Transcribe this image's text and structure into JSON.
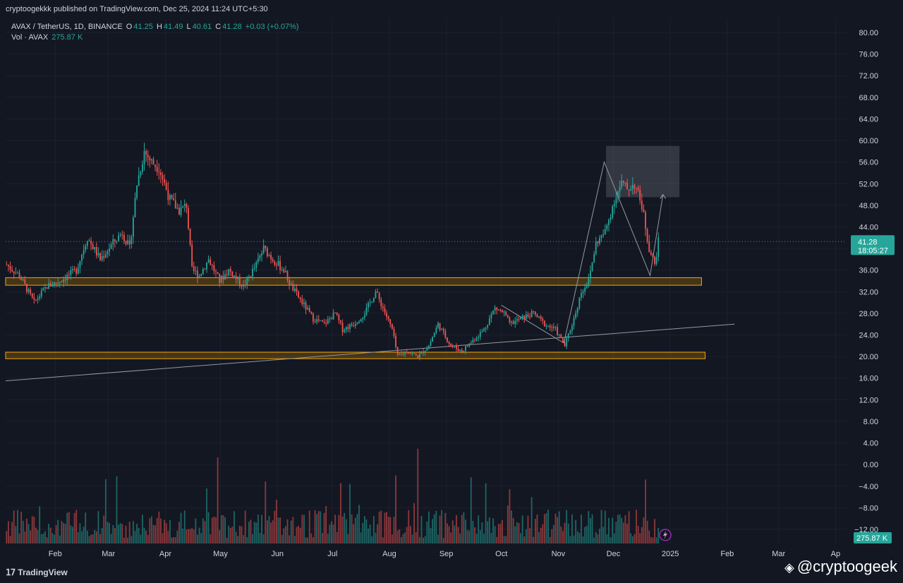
{
  "header": {
    "publisher_line": "cryptoogekkk published on TradingView.com, Dec 25, 2024 11:24 UTC+5:30"
  },
  "legend": {
    "symbol": "AVAX / TetherUS, 1D, BINANCE",
    "o_label": "O",
    "o_value": "41.25",
    "h_label": "H",
    "h_value": "41.49",
    "l_label": "L",
    "l_value": "40.61",
    "c_label": "C",
    "c_value": "41.28",
    "change": "+0.03 (+0.07%)",
    "vol_label": "Vol · AVAX",
    "vol_value": "275.87 K"
  },
  "price_tag": {
    "price": "41.28",
    "countdown": "18:05:27"
  },
  "volume_tag": "275.87 K",
  "footer": {
    "brand": "TradingView",
    "watermark": "@cryptoogeek"
  },
  "colors": {
    "up": "#26a69a",
    "down": "#ef5350",
    "zone": "#f7a600",
    "bg": "#131722"
  },
  "chart_data": {
    "type": "candlestick",
    "symbol": "AVAX / TetherUS",
    "timeframe": "1D",
    "y_ticks": [
      "80.00",
      "76.00",
      "72.00",
      "68.00",
      "64.00",
      "60.00",
      "56.00",
      "52.00",
      "48.00",
      "44.00",
      "40.00",
      "36.00",
      "32.00",
      "28.00",
      "24.00",
      "20.00",
      "16.00",
      "12.00",
      "8.00",
      "4.00",
      "0.00",
      "−4.00",
      "−8.00",
      "−12.00"
    ],
    "ylim": [
      -12,
      80
    ],
    "x_ticks": [
      {
        "label": "Feb",
        "date": "2024-02-01"
      },
      {
        "label": "Mar",
        "date": "2024-03-01"
      },
      {
        "label": "Apr",
        "date": "2024-04-01"
      },
      {
        "label": "May",
        "date": "2024-05-01"
      },
      {
        "label": "Jun",
        "date": "2024-06-01"
      },
      {
        "label": "Jul",
        "date": "2024-07-01"
      },
      {
        "label": "Aug",
        "date": "2024-08-01"
      },
      {
        "label": "Sep",
        "date": "2024-09-01"
      },
      {
        "label": "Oct",
        "date": "2024-10-01"
      },
      {
        "label": "Nov",
        "date": "2024-11-01"
      },
      {
        "label": "Dec",
        "date": "2024-12-01"
      },
      {
        "label": "2025",
        "date": "2025-01-01"
      },
      {
        "label": "Feb",
        "date": "2025-02-01"
      },
      {
        "label": "Mar",
        "date": "2025-03-01"
      },
      {
        "label": "Ap",
        "date": "2025-04-01"
      }
    ],
    "x_range": [
      "2024-01-05",
      "2025-04-07"
    ],
    "price_anchors": [
      [
        "2024-01-05",
        37
      ],
      [
        "2024-01-12",
        35
      ],
      [
        "2024-01-20",
        30
      ],
      [
        "2024-01-27",
        33
      ],
      [
        "2024-02-03",
        34
      ],
      [
        "2024-02-12",
        36
      ],
      [
        "2024-02-18",
        42
      ],
      [
        "2024-02-25",
        38
      ],
      [
        "2024-03-03",
        41
      ],
      [
        "2024-03-08",
        43
      ],
      [
        "2024-03-12",
        40
      ],
      [
        "2024-03-16",
        52
      ],
      [
        "2024-03-20",
        58
      ],
      [
        "2024-03-24",
        56
      ],
      [
        "2024-03-28",
        55
      ],
      [
        "2024-04-03",
        49
      ],
      [
        "2024-04-08",
        47
      ],
      [
        "2024-04-12",
        48
      ],
      [
        "2024-04-15",
        36
      ],
      [
        "2024-04-19",
        35
      ],
      [
        "2024-04-24",
        38
      ],
      [
        "2024-04-30",
        34
      ],
      [
        "2024-05-05",
        36
      ],
      [
        "2024-05-13",
        33
      ],
      [
        "2024-05-20",
        37
      ],
      [
        "2024-05-24",
        40
      ],
      [
        "2024-05-29",
        38
      ],
      [
        "2024-06-04",
        36
      ],
      [
        "2024-06-08",
        33
      ],
      [
        "2024-06-14",
        30
      ],
      [
        "2024-06-20",
        27
      ],
      [
        "2024-06-26",
        26
      ],
      [
        "2024-07-02",
        28
      ],
      [
        "2024-07-06",
        25
      ],
      [
        "2024-07-12",
        26
      ],
      [
        "2024-07-18",
        28
      ],
      [
        "2024-07-24",
        32
      ],
      [
        "2024-07-28",
        29
      ],
      [
        "2024-08-02",
        25
      ],
      [
        "2024-08-05",
        20
      ],
      [
        "2024-08-10",
        21
      ],
      [
        "2024-08-16",
        20
      ],
      [
        "2024-08-22",
        22
      ],
      [
        "2024-08-27",
        26
      ],
      [
        "2024-09-03",
        22
      ],
      [
        "2024-09-09",
        21
      ],
      [
        "2024-09-15",
        23
      ],
      [
        "2024-09-21",
        25
      ],
      [
        "2024-09-27",
        29
      ],
      [
        "2024-10-02",
        28
      ],
      [
        "2024-10-05",
        26
      ],
      [
        "2024-10-11",
        27
      ],
      [
        "2024-10-18",
        28
      ],
      [
        "2024-10-24",
        26
      ],
      [
        "2024-10-30",
        25
      ],
      [
        "2024-11-04",
        22
      ],
      [
        "2024-11-09",
        27
      ],
      [
        "2024-11-13",
        32
      ],
      [
        "2024-11-17",
        34
      ],
      [
        "2024-11-21",
        41
      ],
      [
        "2024-11-26",
        43
      ],
      [
        "2024-12-01",
        49
      ],
      [
        "2024-12-05",
        52
      ],
      [
        "2024-12-08",
        51
      ],
      [
        "2024-12-12",
        52
      ],
      [
        "2024-12-16",
        48
      ],
      [
        "2024-12-20",
        40
      ],
      [
        "2024-12-23",
        37
      ],
      [
        "2024-12-25",
        41.28
      ]
    ],
    "volume_note": "volume histogram below price, color matches candle direction",
    "drawings": {
      "support_zones": [
        {
          "low": 33.2,
          "high": 34.6,
          "from": "2024-01-05",
          "to": "2025-01-18"
        },
        {
          "low": 19.6,
          "high": 20.8,
          "from": "2024-01-05",
          "to": "2025-01-20"
        }
      ],
      "target_box": {
        "low": 49.5,
        "high": 59,
        "from": "2024-11-27",
        "to": "2025-01-06"
      },
      "trendline": {
        "from": [
          "2024-01-05",
          15.5
        ],
        "to": [
          "2025-02-05",
          26
        ]
      },
      "wedge_line": {
        "from": [
          "2024-10-01",
          29.5
        ],
        "to": [
          "2024-11-04",
          22.5
        ]
      },
      "zigzag": [
        [
          "2024-11-04",
          22.5
        ],
        [
          "2024-11-26",
          56
        ],
        [
          "2024-12-21",
          35
        ],
        [
          "2024-12-28",
          50
        ]
      ],
      "last_price_line": 41.28
    }
  }
}
